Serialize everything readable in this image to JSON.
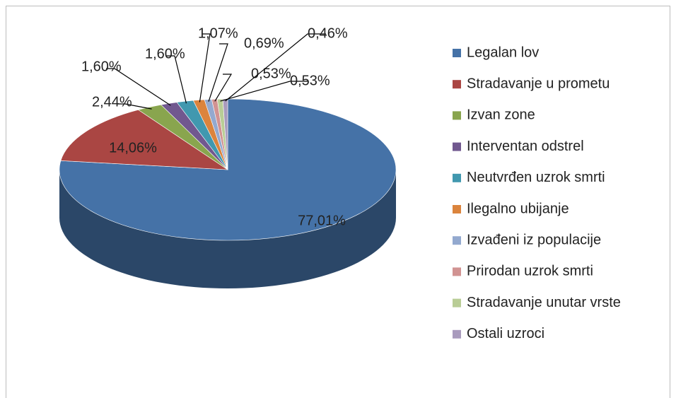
{
  "chart_data": {
    "type": "pie3d",
    "categories": [
      "Legalan lov",
      "Stradavanje u prometu",
      "Izvan zone",
      "Interventan odstrel",
      "Neutvrđen uzrok smrti",
      "Ilegalno ubijanje",
      "Izvađeni iz populacije",
      "Prirodan uzrok smrti",
      "Stradavanje unutar vrste",
      "Ostali uzroci"
    ],
    "values": [
      77.01,
      14.06,
      2.44,
      1.6,
      1.6,
      1.07,
      0.69,
      0.53,
      0.53,
      0.46
    ],
    "value_labels": [
      "77,01%",
      "14,06%",
      "2,44%",
      "1,60%",
      "1,60%",
      "1,07%",
      "0,69%",
      "0,53%",
      "0,53%",
      "0,46%"
    ],
    "colors": [
      "#4572A7",
      "#AA4643",
      "#89A54E",
      "#71588F",
      "#4198AF",
      "#DB843D",
      "#93A9CF",
      "#D19392",
      "#B9CD96",
      "#A99BBD"
    ],
    "legend": "right"
  }
}
